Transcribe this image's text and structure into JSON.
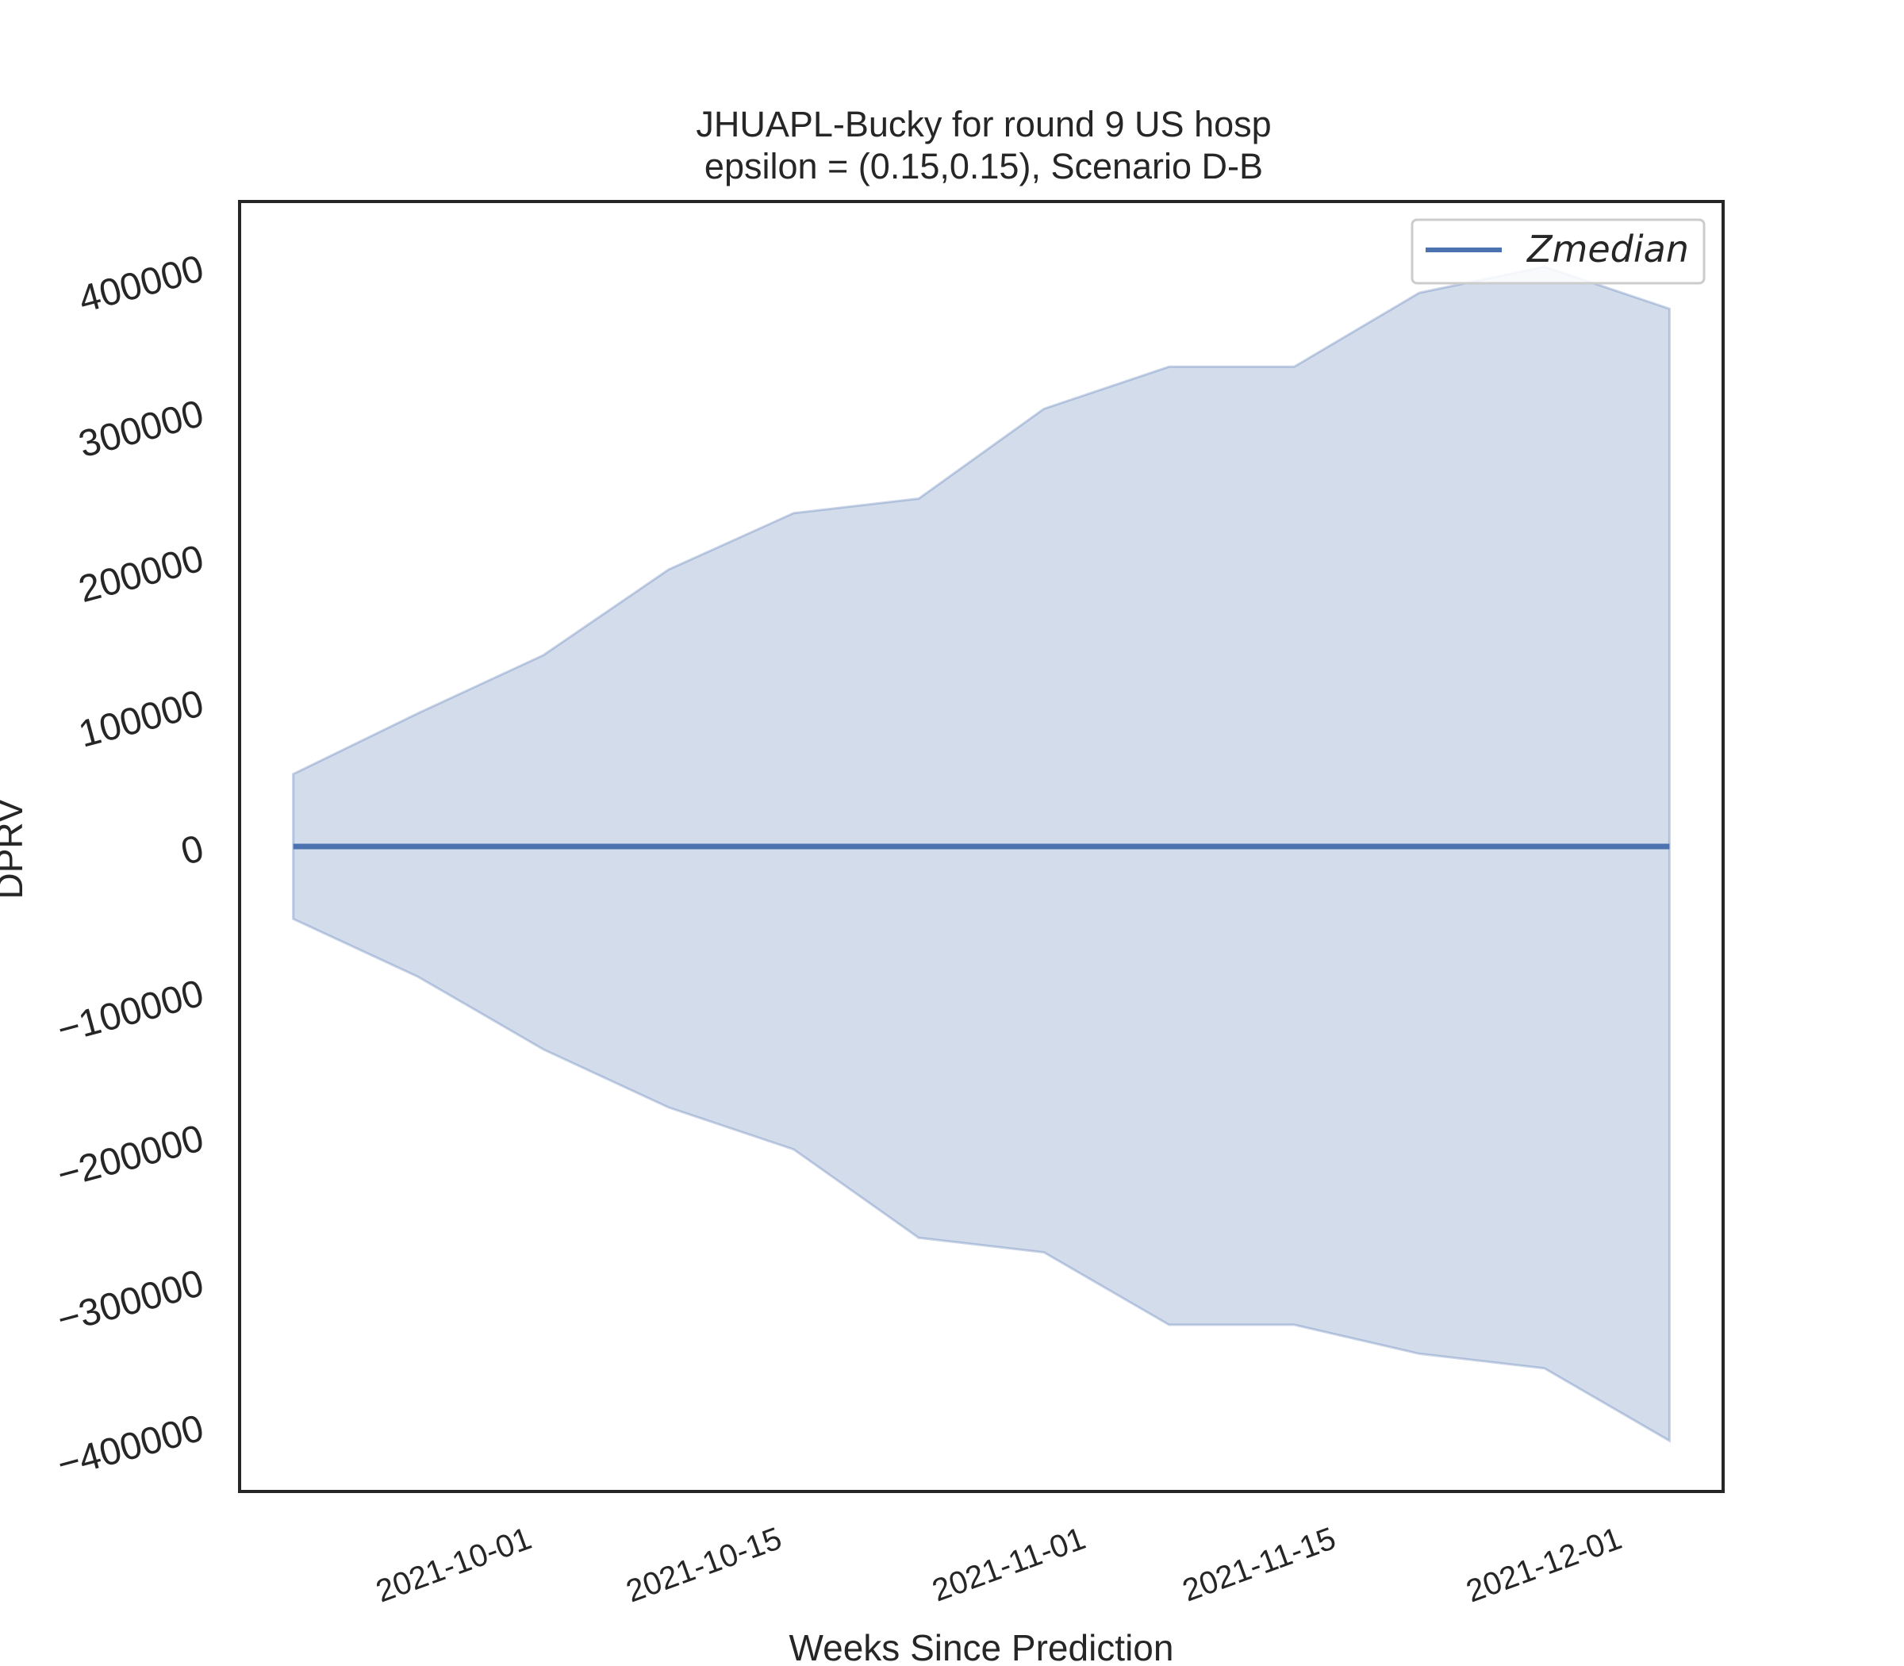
{
  "chart_data": {
    "type": "line",
    "title_line1": "JHUAPL-Bucky for round 9 US  hosp",
    "title_line2": "epsilon = (0.15,0.15), Scenario D-B",
    "xlabel": "Weeks Since Prediction",
    "ylabel": "DPRV",
    "x": [
      "2021-09-18",
      "2021-09-25",
      "2021-10-02",
      "2021-10-09",
      "2021-10-16",
      "2021-10-23",
      "2021-10-30",
      "2021-11-06",
      "2021-11-13",
      "2021-11-20",
      "2021-11-27",
      "2021-12-04"
    ],
    "series": [
      {
        "name": "Zmedian",
        "color": "#4c72b0",
        "values": [
          0,
          0,
          0,
          0,
          0,
          0,
          0,
          0,
          0,
          0,
          0,
          0
        ]
      }
    ],
    "band": {
      "color": "#4c72b0",
      "upper": [
        50000,
        92000,
        132000,
        191000,
        230000,
        240000,
        302000,
        331000,
        331000,
        382000,
        400000,
        371000
      ],
      "lower": [
        -50000,
        -90000,
        -140000,
        -180000,
        -209000,
        -270000,
        -280000,
        -330000,
        -330000,
        -350000,
        -360000,
        -410000
      ]
    },
    "xticks": [
      "2021-10-01",
      "2021-10-15",
      "2021-11-01",
      "2021-11-15",
      "2021-12-01"
    ],
    "yticks": [
      400000,
      300000,
      200000,
      100000,
      0,
      -100000,
      -200000,
      -300000,
      -400000
    ],
    "ylim": [
      -445000,
      445000
    ],
    "xlim": [
      "2021-09-15",
      "2021-12-07"
    ],
    "legend": "top-right",
    "grid": false
  }
}
